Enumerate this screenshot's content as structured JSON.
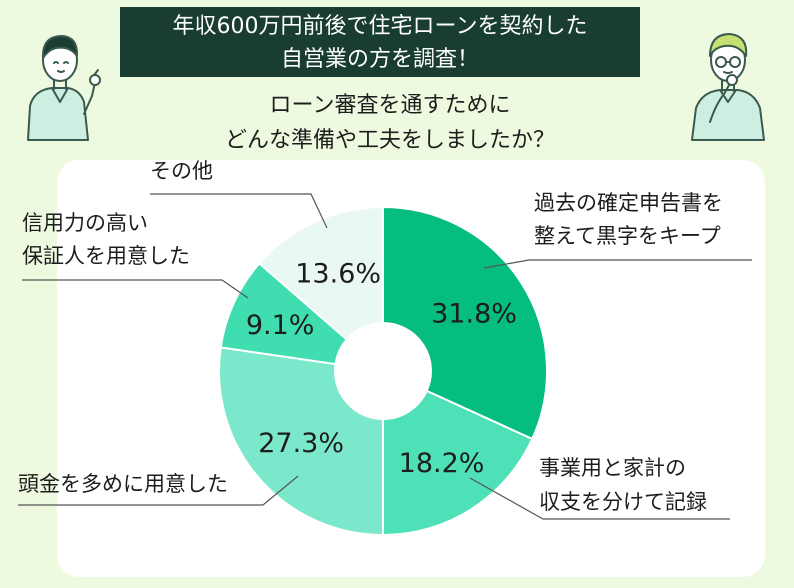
{
  "header": {
    "banner_lines": [
      "年収600万円前後で住宅ローンを契約した",
      "自営業の方を調査！"
    ],
    "question_lines": [
      "ローン審査を通すために",
      "どんな準備や工夫をしましたか？"
    ]
  },
  "chart_data": {
    "type": "pie",
    "title": "",
    "donut": true,
    "slices": [
      {
        "label": "過去の確定申告書を整えて黒字をキープ",
        "label_lines": [
          "過去の確定申告書を",
          "整えて黒字をキープ"
        ],
        "value": 31.8,
        "display": "31.8%",
        "color": "#06bd80"
      },
      {
        "label": "事業用と家計の収支を分けて記録",
        "label_lines": [
          "事業用と家計の",
          "収支を分けて記録"
        ],
        "value": 18.2,
        "display": "18.2%",
        "color": "#4ee0b6"
      },
      {
        "label": "頭金を多めに用意した",
        "label_lines": [
          "頭金を多めに用意した"
        ],
        "value": 27.3,
        "display": "27.3%",
        "color": "#7ce8cb"
      },
      {
        "label": "信用力の高い保証人を用意した",
        "label_lines": [
          "信用力の高い",
          "保証人を用意した"
        ],
        "value": 9.1,
        "display": "9.1%",
        "color": "#3fddb0"
      },
      {
        "label": "その他",
        "label_lines": [
          "その他"
        ],
        "value": 13.6,
        "display": "13.6%",
        "color": "#eaf8f3"
      }
    ]
  },
  "colors": {
    "background": "#eefadf",
    "banner": "#193d33",
    "card": "#ffffff",
    "text": "#1d1d1d",
    "figure_fill": "#cdeee0",
    "figure_line": "#3a5a50"
  },
  "icons": [
    "woman-pointing-icon",
    "man-thinking-icon"
  ]
}
